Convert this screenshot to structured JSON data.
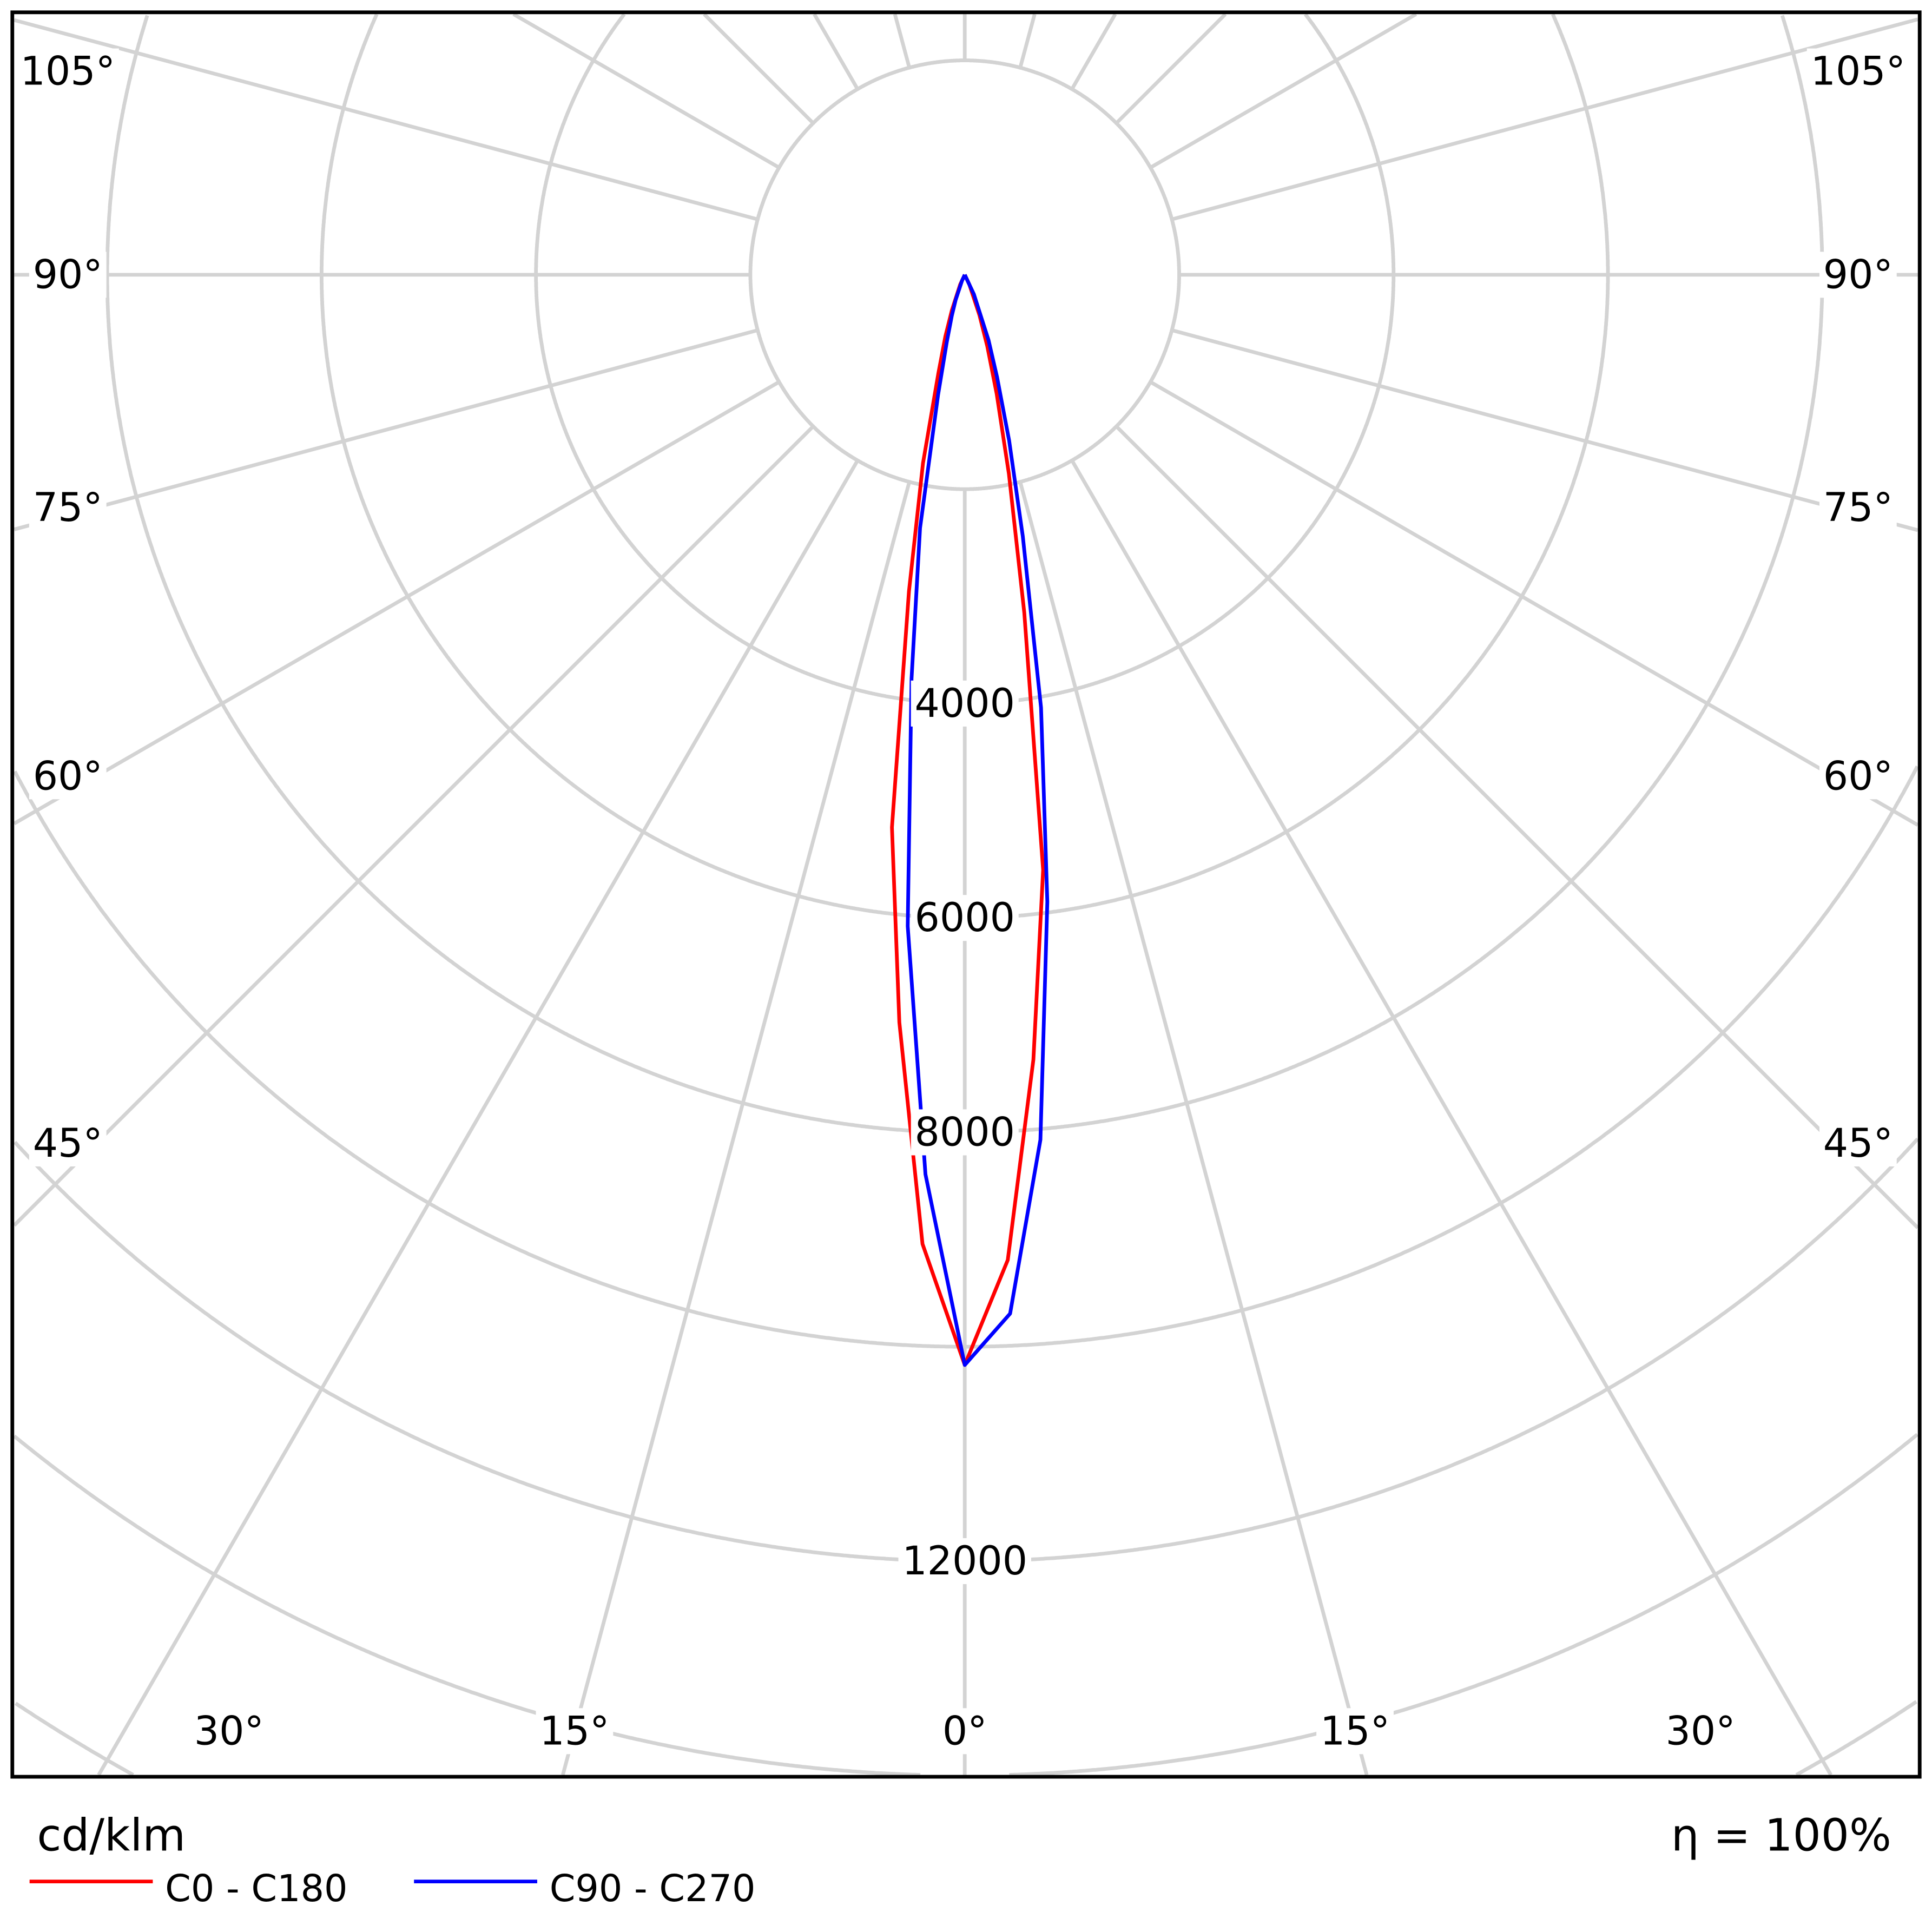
{
  "chart_data": {
    "type": "polar-line",
    "title": "",
    "unit_label": "cd/klm",
    "efficiency_label": "η = 100%",
    "radial_ticks": [
      2000,
      4000,
      6000,
      8000,
      10000,
      12000,
      14000,
      16000,
      18000
    ],
    "radial_tick_labels": [
      {
        "value": 4000,
        "text": "4000"
      },
      {
        "value": 6000,
        "text": "6000"
      },
      {
        "value": 8000,
        "text": "8000"
      },
      {
        "value": 12000,
        "text": "12000"
      }
    ],
    "angle_grid_step_deg": 15,
    "angle_labels_bottom": [
      {
        "angle": -30,
        "text": "30°"
      },
      {
        "angle": -15,
        "text": "15°"
      },
      {
        "angle": 0,
        "text": "0°"
      },
      {
        "angle": 15,
        "text": "15°"
      },
      {
        "angle": 30,
        "text": "30°"
      }
    ],
    "angle_labels_side": [
      {
        "angle": 45,
        "text": "45°"
      },
      {
        "angle": 60,
        "text": "60°"
      },
      {
        "angle": 75,
        "text": "75°"
      },
      {
        "angle": 90,
        "text": "90°"
      },
      {
        "angle": 105,
        "text": "105°"
      }
    ],
    "angles_deg": [
      0,
      2.5,
      5,
      7.5,
      10,
      12.5,
      15,
      17.5,
      20,
      25,
      30,
      45,
      60,
      75,
      90
    ],
    "series": [
      {
        "name": "C0 - C180",
        "color": "#ff0000",
        "left": [
          10170,
          9050,
          7000,
          5200,
          3000,
          1800,
          950,
          600,
          350,
          100,
          0,
          0,
          0,
          0,
          0
        ],
        "right": [
          10170,
          9200,
          7350,
          5600,
          3200,
          1900,
          1150,
          700,
          400,
          100,
          0,
          0,
          0,
          0,
          0
        ]
      },
      {
        "name": "C90 - C270",
        "color": "#0000ff",
        "left": [
          10170,
          8400,
          6100,
          3800,
          2400,
          1150,
          650,
          400,
          250,
          60,
          0,
          0,
          0,
          0,
          0
        ],
        "right": [
          10170,
          9700,
          8100,
          5900,
          4100,
          2500,
          1600,
          1000,
          650,
          200,
          0,
          0,
          0,
          0,
          0
        ]
      }
    ],
    "legend_position": "bottom-left",
    "grid": true
  }
}
